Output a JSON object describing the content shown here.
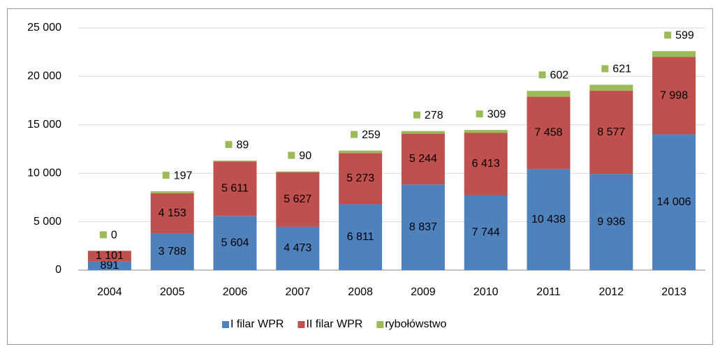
{
  "chart_data": {
    "type": "stacked_bar",
    "categories": [
      "2004",
      "2005",
      "2006",
      "2007",
      "2008",
      "2009",
      "2010",
      "2011",
      "2012",
      "2013"
    ],
    "series": [
      {
        "name": "I filar WPR",
        "color": "#4f81bd",
        "values": [
          891,
          3788,
          5604,
          4473,
          6811,
          8837,
          7744,
          10438,
          9936,
          14006
        ],
        "value_labels": [
          "891",
          "3 788",
          "5 604",
          "4 473",
          "6 811",
          "8 837",
          "7 744",
          "10 438",
          "9 936",
          "14 006"
        ]
      },
      {
        "name": "II filar WPR",
        "color": "#c0504d",
        "values": [
          1101,
          4153,
          5611,
          5627,
          5273,
          5244,
          6413,
          7458,
          8577,
          7998
        ],
        "value_labels": [
          "1 101",
          "4 153",
          "5 611",
          "5 627",
          "5 273",
          "5 244",
          "6 413",
          "7 458",
          "8 577",
          "7 998"
        ]
      },
      {
        "name": "rybołówstwo",
        "color": "#9bbb59",
        "values": [
          0,
          197,
          89,
          90,
          259,
          278,
          309,
          602,
          621,
          599
        ]
      }
    ],
    "ylim": [
      0,
      25000
    ],
    "yticks": [
      0,
      {
        "value": 5000,
        "label": "5 000"
      },
      {
        "value": 10000,
        "label": "10 000"
      },
      {
        "value": 15000,
        "label": "15 000"
      },
      {
        "value": 20000,
        "label": "20 000"
      },
      {
        "value": 25000,
        "label": "25 000"
      }
    ],
    "grid": true,
    "legend": "bottom"
  }
}
